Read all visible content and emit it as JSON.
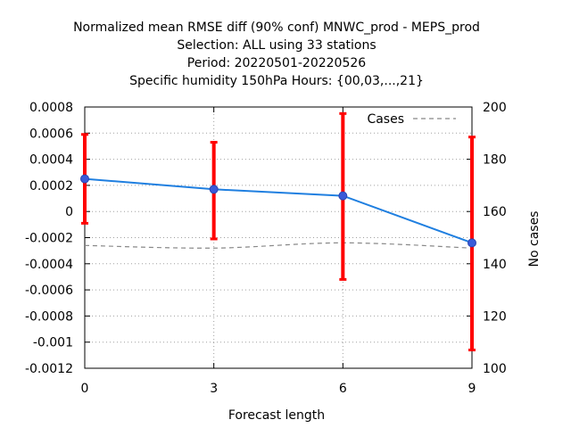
{
  "chart_data": {
    "type": "line",
    "title": [
      "Normalized mean RMSE diff (90% conf) MNWC_prod - MEPS_prod",
      "Selection: ALL using    33 stations",
      "Period: 20220501-20220526",
      "Specific humidity 150hPa   Hours: {00,03,...,21}"
    ],
    "xlabel": "Forecast length",
    "ylabel": "",
    "y2label": "No cases",
    "xlim": [
      0,
      9
    ],
    "ylim": [
      -0.0012,
      0.0008
    ],
    "y2lim": [
      100,
      200
    ],
    "x_ticks": [
      "0",
      "3",
      "6",
      "9"
    ],
    "y_ticks": [
      "0.0008",
      "0.0006",
      "0.0004",
      "0.0002",
      "0",
      "-0.0002",
      "-0.0004",
      "-0.0006",
      "-0.0008",
      "-0.001",
      "-0.0012"
    ],
    "y2_ticks": [
      "200",
      "180",
      "160",
      "140",
      "120",
      "100"
    ],
    "grid": true,
    "legend_position": "top-right",
    "series": [
      {
        "x": [
          0,
          3,
          6,
          9
        ],
        "y": [
          0.00025,
          0.00017,
          0.00012,
          -0.00024
        ],
        "ci_low": [
          -9e-05,
          -0.00021,
          -0.00052,
          -0.00106
        ],
        "ci_high": [
          0.00059,
          0.00053,
          0.00075,
          0.00057
        ],
        "color": "#1f7fe0",
        "errorbar_color": "#ff0000"
      },
      {
        "name": "Cases",
        "x": [
          0,
          3,
          6,
          9
        ],
        "y": [
          147,
          146,
          148,
          146
        ],
        "axis": "right",
        "style": "dashed",
        "color": "#888888"
      }
    ]
  }
}
